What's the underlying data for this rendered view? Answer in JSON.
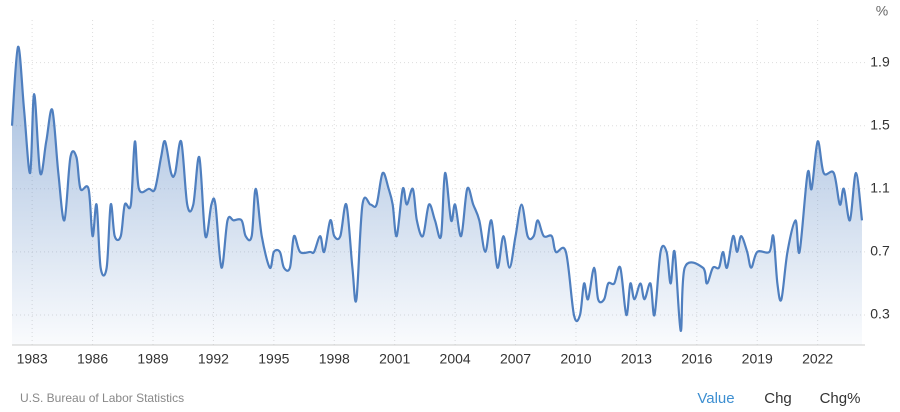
{
  "chart_data": {
    "type": "area",
    "unit": "%",
    "source": "U.S. Bureau of Labor Statistics",
    "tabs": [
      "Value",
      "Chg",
      "Chg%"
    ],
    "active_tab": 0,
    "color": "#4f7fbf",
    "grid": true,
    "xlim": [
      1982,
      2024.35
    ],
    "ylim": [
      0.11,
      2.17
    ],
    "xticks": [
      1983,
      1986,
      1989,
      1992,
      1995,
      1998,
      2001,
      2004,
      2007,
      2010,
      2013,
      2016,
      2019,
      2022
    ],
    "yticks": [
      0.3,
      0.7,
      1.1,
      1.5,
      1.9
    ],
    "x": [
      1982.0,
      1982.3,
      1982.6,
      1982.9,
      1983.1,
      1983.4,
      1983.7,
      1984.0,
      1984.3,
      1984.6,
      1984.9,
      1985.2,
      1985.4,
      1985.8,
      1986.0,
      1986.2,
      1986.4,
      1986.7,
      1986.9,
      1987.1,
      1987.4,
      1987.6,
      1987.9,
      1988.1,
      1988.3,
      1988.8,
      1989.1,
      1989.4,
      1989.6,
      1989.9,
      1990.1,
      1990.4,
      1990.7,
      1991.0,
      1991.3,
      1991.6,
      1991.9,
      1992.1,
      1992.4,
      1992.7,
      1993.0,
      1993.4,
      1993.6,
      1993.9,
      1994.1,
      1994.4,
      1994.8,
      1995.0,
      1995.3,
      1995.5,
      1995.8,
      1996.0,
      1996.3,
      1996.8,
      1997.0,
      1997.3,
      1997.5,
      1997.8,
      1998.0,
      1998.3,
      1998.6,
      1998.9,
      1999.1,
      1999.4,
      1999.8,
      2000.1,
      2000.4,
      2000.7,
      2000.9,
      2001.1,
      2001.4,
      2001.6,
      2001.9,
      2002.1,
      2002.4,
      2002.7,
      2003.0,
      2003.3,
      2003.5,
      2003.8,
      2004.0,
      2004.3,
      2004.6,
      2004.9,
      2005.2,
      2005.5,
      2005.8,
      2006.1,
      2006.4,
      2006.7,
      2007.0,
      2007.3,
      2007.6,
      2007.9,
      2008.1,
      2008.4,
      2008.8,
      2009.0,
      2009.5,
      2009.9,
      2010.2,
      2010.4,
      2010.6,
      2010.9,
      2011.1,
      2011.4,
      2011.6,
      2011.9,
      2012.2,
      2012.5,
      2012.7,
      2012.9,
      2013.2,
      2013.4,
      2013.7,
      2013.9,
      2014.2,
      2014.5,
      2014.7,
      2014.9,
      2015.2,
      2015.4,
      2016.3,
      2016.5,
      2016.8,
      2017.1,
      2017.3,
      2017.5,
      2017.8,
      2018.0,
      2018.2,
      2018.5,
      2018.7,
      2019.0,
      2019.6,
      2019.8,
      2020.0,
      2020.2,
      2020.5,
      2020.9,
      2021.1,
      2021.5,
      2021.7,
      2022.0,
      2022.3,
      2022.8,
      2023.1,
      2023.3,
      2023.6,
      2023.9,
      2024.2
    ],
    "values": [
      1.5,
      2.0,
      1.6,
      1.2,
      1.7,
      1.2,
      1.4,
      1.6,
      1.2,
      0.9,
      1.3,
      1.3,
      1.1,
      1.1,
      0.8,
      1.0,
      0.6,
      0.6,
      1.0,
      0.8,
      0.8,
      1.0,
      1.0,
      1.4,
      1.1,
      1.1,
      1.1,
      1.3,
      1.4,
      1.2,
      1.2,
      1.4,
      1.0,
      1.0,
      1.3,
      0.8,
      1.0,
      1.0,
      0.6,
      0.9,
      0.9,
      0.9,
      0.8,
      0.8,
      1.1,
      0.8,
      0.6,
      0.7,
      0.7,
      0.6,
      0.6,
      0.8,
      0.7,
      0.7,
      0.7,
      0.8,
      0.7,
      0.9,
      0.8,
      0.8,
      1.0,
      0.6,
      0.4,
      1.0,
      1.0,
      1.0,
      1.2,
      1.1,
      1.0,
      0.8,
      1.1,
      1.0,
      1.1,
      0.9,
      0.8,
      1.0,
      0.9,
      0.8,
      1.2,
      0.9,
      1.0,
      0.8,
      1.1,
      1.0,
      0.9,
      0.7,
      0.9,
      0.6,
      0.8,
      0.6,
      0.8,
      1.0,
      0.8,
      0.8,
      0.9,
      0.8,
      0.8,
      0.7,
      0.7,
      0.3,
      0.3,
      0.5,
      0.4,
      0.6,
      0.4,
      0.4,
      0.5,
      0.5,
      0.6,
      0.3,
      0.5,
      0.4,
      0.5,
      0.4,
      0.5,
      0.3,
      0.7,
      0.7,
      0.5,
      0.7,
      0.2,
      0.6,
      0.6,
      0.5,
      0.6,
      0.6,
      0.7,
      0.6,
      0.8,
      0.7,
      0.8,
      0.7,
      0.6,
      0.7,
      0.7,
      0.8,
      0.5,
      0.4,
      0.7,
      0.9,
      0.7,
      1.2,
      1.1,
      1.4,
      1.2,
      1.2,
      1.0,
      1.1,
      0.9,
      1.2,
      0.9
    ]
  }
}
